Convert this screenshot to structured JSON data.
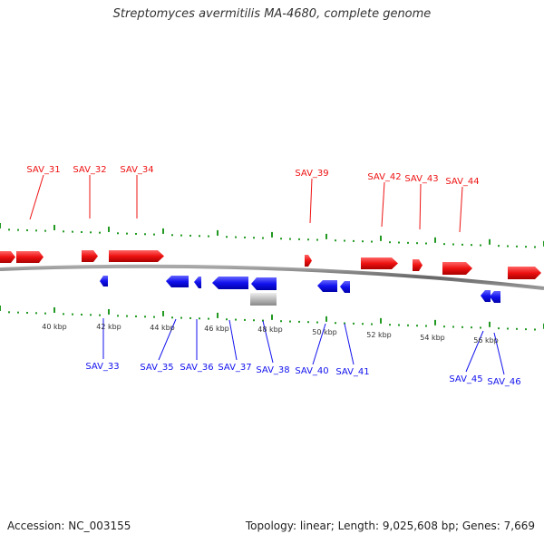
{
  "title": "Streptomyces avermitilis MA-4680, complete genome",
  "footer": {
    "accession": "Accession: NC_003155",
    "summary": "Topology: linear; Length: 9,025,608 bp; Genes: 7,669"
  },
  "colors": {
    "forward": "#ee1111",
    "reverse": "#1111ee",
    "other": "#bbbbbb",
    "tick": "#229922",
    "backbone": "#7a7a7a"
  },
  "scale_labels": [
    "40 kbp",
    "42 kbp",
    "44 kbp",
    "46 kbp",
    "48 kbp",
    "50 kbp",
    "52 kbp",
    "54 kbp",
    "56 kbp"
  ],
  "genes_forward": [
    "SAV_31",
    "SAV_32",
    "SAV_34",
    "SAV_39",
    "SAV_42",
    "SAV_43",
    "SAV_44"
  ],
  "genes_reverse": [
    "SAV_33",
    "SAV_35",
    "SAV_36",
    "SAV_37",
    "SAV_38",
    "SAV_40",
    "SAV_41",
    "SAV_45",
    "SAV_46"
  ]
}
